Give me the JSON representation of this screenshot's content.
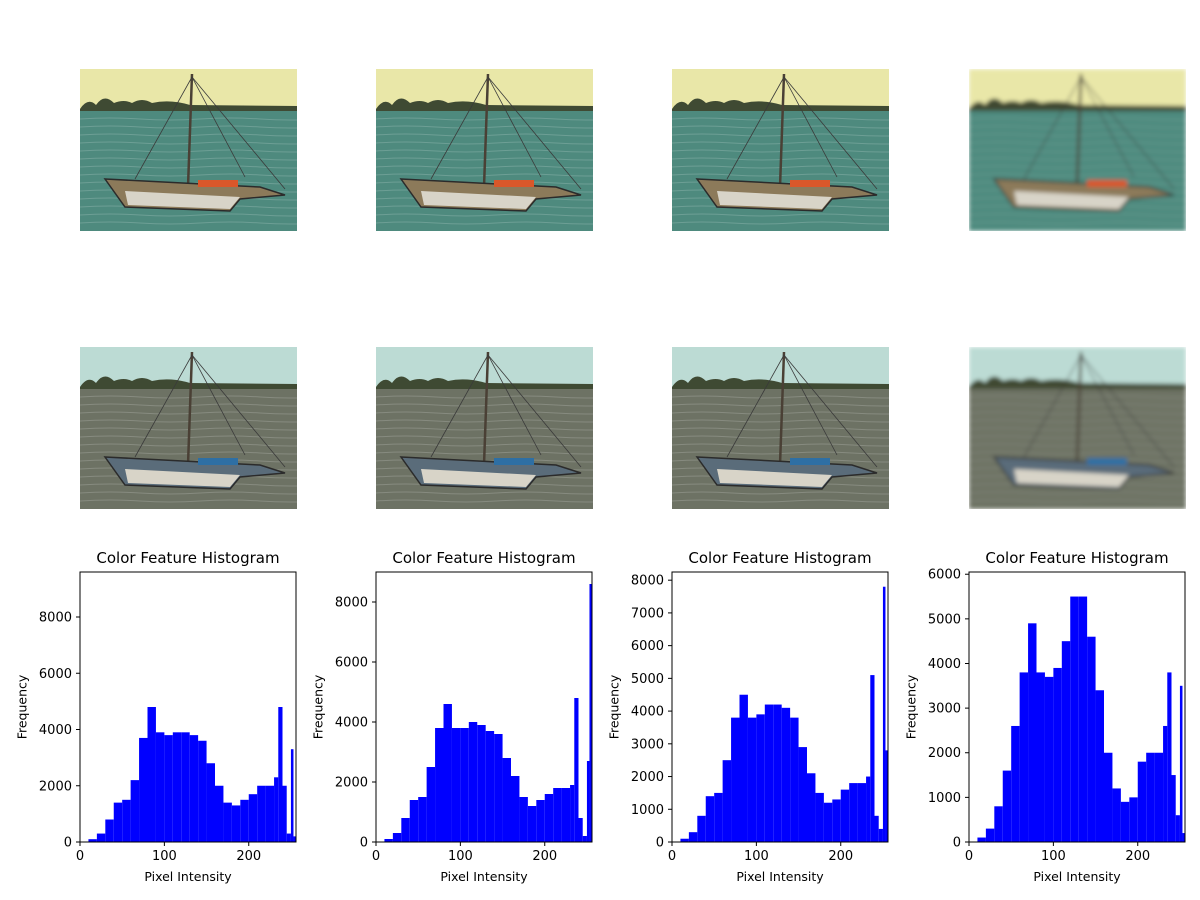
{
  "figure": {
    "image_rows": [
      {
        "row": "top",
        "tone": "warm-yellow",
        "colors": {
          "sky": "#e9e7a8",
          "sea": "#4e8a7e",
          "hull": "#8c7a5a",
          "accent": "#d9572a"
        }
      },
      {
        "row": "middle",
        "tone": "cool-cyan",
        "colors": {
          "sky": "#bcdbd4",
          "sea": "#6d7264",
          "hull": "#5a6c7a",
          "accent": "#2e6fa4"
        }
      }
    ],
    "image_columns": [
      "sharp",
      "sharp",
      "sharp",
      "blurred"
    ]
  },
  "chart_data": [
    {
      "type": "bar",
      "title": "Color Feature Histogram",
      "xlabel": "Pixel Intensity",
      "ylabel": "Frequency",
      "xlim": [
        0,
        256
      ],
      "ylim": [
        0,
        9600
      ],
      "xticks": [
        0,
        100,
        200
      ],
      "yticks": [
        0,
        2000,
        4000,
        6000,
        8000
      ],
      "bar_color": "#0000ff",
      "bins": [
        0,
        10,
        20,
        30,
        40,
        50,
        60,
        70,
        80,
        90,
        100,
        110,
        120,
        130,
        140,
        150,
        160,
        170,
        180,
        190,
        200,
        210,
        220,
        230,
        235,
        240,
        245,
        250,
        253,
        256
      ],
      "values": [
        0,
        100,
        300,
        800,
        1400,
        1500,
        2200,
        3700,
        4800,
        3900,
        3800,
        3900,
        3900,
        3800,
        3600,
        2800,
        2000,
        1400,
        1300,
        1500,
        1700,
        2000,
        2000,
        2300,
        4800,
        2000,
        300,
        3300,
        200,
        0
      ]
    },
    {
      "type": "bar",
      "title": "Color Feature Histogram",
      "xlabel": "Pixel Intensity",
      "ylabel": "Frequency",
      "xlim": [
        0,
        256
      ],
      "ylim": [
        0,
        9000
      ],
      "xticks": [
        0,
        100,
        200
      ],
      "yticks": [
        0,
        2000,
        4000,
        6000,
        8000
      ],
      "bar_color": "#0000ff",
      "bins": [
        0,
        10,
        20,
        30,
        40,
        50,
        60,
        70,
        80,
        90,
        100,
        110,
        120,
        130,
        140,
        150,
        160,
        170,
        180,
        190,
        200,
        210,
        220,
        230,
        235,
        240,
        245,
        250,
        253,
        256
      ],
      "values": [
        0,
        100,
        300,
        800,
        1400,
        1500,
        2500,
        3800,
        4600,
        3800,
        3800,
        4000,
        3900,
        3700,
        3600,
        2800,
        2200,
        1500,
        1200,
        1400,
        1600,
        1800,
        1800,
        1900,
        4800,
        800,
        200,
        2700,
        8600,
        0
      ]
    },
    {
      "type": "bar",
      "title": "Color Feature Histogram",
      "xlabel": "Pixel Intensity",
      "ylabel": "Frequency",
      "xlim": [
        0,
        256
      ],
      "ylim": [
        0,
        8250
      ],
      "xticks": [
        0,
        100,
        200
      ],
      "yticks": [
        0,
        1000,
        2000,
        3000,
        4000,
        5000,
        6000,
        7000,
        8000
      ],
      "bar_color": "#0000ff",
      "bins": [
        0,
        10,
        20,
        30,
        40,
        50,
        60,
        70,
        80,
        90,
        100,
        110,
        120,
        130,
        140,
        150,
        160,
        170,
        180,
        190,
        200,
        210,
        220,
        230,
        235,
        240,
        245,
        250,
        253,
        256
      ],
      "values": [
        0,
        100,
        300,
        800,
        1400,
        1500,
        2500,
        3800,
        4500,
        3800,
        3900,
        4200,
        4200,
        4100,
        3800,
        2900,
        2100,
        1500,
        1200,
        1300,
        1600,
        1800,
        1800,
        2000,
        5100,
        800,
        400,
        7800,
        2800,
        0
      ]
    },
    {
      "type": "bar",
      "title": "Color Feature Histogram",
      "xlabel": "Pixel Intensity",
      "ylabel": "Frequency",
      "xlim": [
        0,
        256
      ],
      "ylim": [
        0,
        6050
      ],
      "xticks": [
        0,
        100,
        200
      ],
      "yticks": [
        0,
        1000,
        2000,
        3000,
        4000,
        5000,
        6000
      ],
      "bar_color": "#0000ff",
      "bins": [
        0,
        10,
        20,
        30,
        40,
        50,
        60,
        70,
        80,
        90,
        100,
        110,
        120,
        130,
        140,
        150,
        160,
        170,
        180,
        190,
        200,
        210,
        220,
        230,
        235,
        240,
        245,
        250,
        253,
        256
      ],
      "values": [
        0,
        100,
        300,
        800,
        1600,
        2600,
        3800,
        4900,
        3800,
        3700,
        3900,
        4500,
        5500,
        5500,
        4600,
        3400,
        2000,
        1200,
        900,
        1000,
        1800,
        2000,
        2000,
        2600,
        3800,
        1500,
        600,
        3500,
        200,
        0
      ]
    }
  ]
}
